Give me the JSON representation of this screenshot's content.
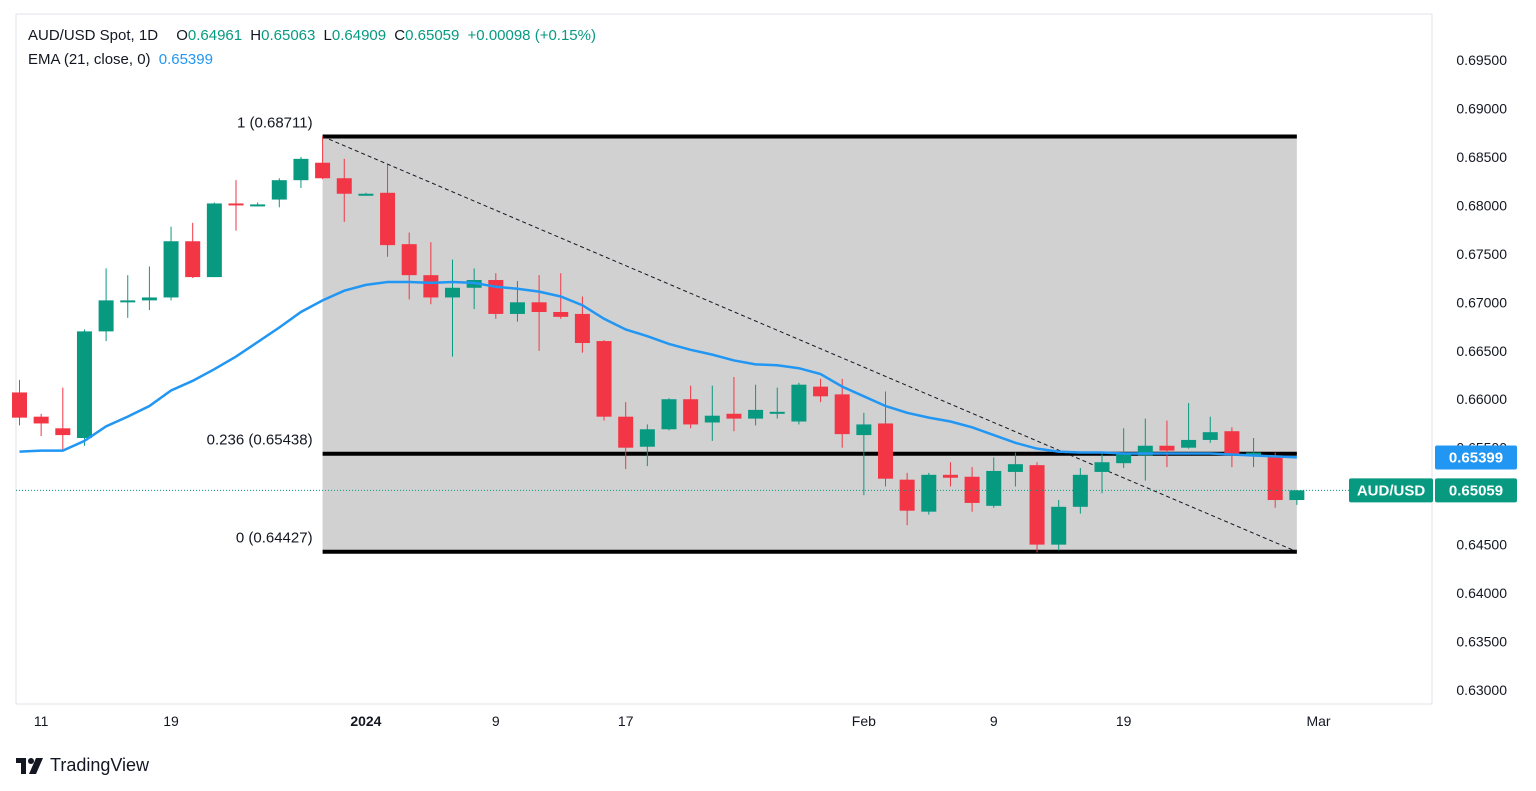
{
  "header": {
    "symbol": "AUD/USD Spot, 1D",
    "o_label": "O",
    "o_value": "0.64961",
    "h_label": "H",
    "h_value": "0.65063",
    "l_label": "L",
    "l_value": "0.64909",
    "c_label": "C",
    "c_value": "0.65059",
    "change": "+0.00098 (+0.15%)",
    "ema_label": "EMA (21, close, 0)",
    "ema_value": "0.65399"
  },
  "branding": {
    "name": "TradingView",
    "icon": "tradingview-logo-icon"
  },
  "colors": {
    "up": "#089981",
    "down": "#f23645",
    "ema": "#2196f3",
    "fib_zone": "#d1d1d1",
    "fib_line": "#000000",
    "grid": "#f0f3fa"
  },
  "chart_data": {
    "type": "candlestick",
    "symbol": "AUD/USD",
    "ylim": [
      0.6275,
      0.6975
    ],
    "yticks": [
      0.695,
      0.69,
      0.685,
      0.68,
      0.675,
      0.67,
      0.665,
      0.66,
      0.655,
      0.65,
      0.645,
      0.64,
      0.635,
      0.63
    ],
    "ytick_labels": [
      "0.69500",
      "0.69000",
      "0.68500",
      "0.68000",
      "0.67500",
      "0.67000",
      "0.66500",
      "0.66000",
      "0.65500",
      "0.65000",
      "0.64500",
      "0.64000",
      "0.63500",
      "0.63000"
    ],
    "xticks": [
      {
        "label": "11",
        "index": 1
      },
      {
        "label": "19",
        "index": 7
      },
      {
        "label": "2024",
        "index": 16,
        "bold": true
      },
      {
        "label": "9",
        "index": 22
      },
      {
        "label": "17",
        "index": 28
      },
      {
        "label": "Feb",
        "index": 39
      },
      {
        "label": "9",
        "index": 45
      },
      {
        "label": "19",
        "index": 51
      },
      {
        "label": "Mar",
        "index": 60
      }
    ],
    "candles": [
      {
        "o": 0.6607,
        "h": 0.662,
        "l": 0.6573,
        "c": 0.6581
      },
      {
        "o": 0.6582,
        "h": 0.6585,
        "l": 0.6562,
        "c": 0.6575
      },
      {
        "o": 0.657,
        "h": 0.6612,
        "l": 0.6546,
        "c": 0.6563
      },
      {
        "o": 0.656,
        "h": 0.6672,
        "l": 0.6552,
        "c": 0.667
      },
      {
        "o": 0.667,
        "h": 0.6735,
        "l": 0.666,
        "c": 0.6702
      },
      {
        "o": 0.6702,
        "h": 0.6728,
        "l": 0.6684,
        "c": 0.6702
      },
      {
        "o": 0.6702,
        "h": 0.6737,
        "l": 0.6692,
        "c": 0.6705
      },
      {
        "o": 0.6705,
        "h": 0.6778,
        "l": 0.6702,
        "c": 0.6763
      },
      {
        "o": 0.6763,
        "h": 0.6782,
        "l": 0.6725,
        "c": 0.6726
      },
      {
        "o": 0.6726,
        "h": 0.6803,
        "l": 0.6726,
        "c": 0.6802
      },
      {
        "o": 0.6802,
        "h": 0.6826,
        "l": 0.6774,
        "c": 0.6801
      },
      {
        "o": 0.68,
        "h": 0.6803,
        "l": 0.6799,
        "c": 0.6801
      },
      {
        "o": 0.6806,
        "h": 0.6828,
        "l": 0.6798,
        "c": 0.6826
      },
      {
        "o": 0.6826,
        "h": 0.685,
        "l": 0.6818,
        "c": 0.6848
      },
      {
        "o": 0.6844,
        "h": 0.6871,
        "l": 0.6827,
        "c": 0.6828
      },
      {
        "o": 0.6828,
        "h": 0.6848,
        "l": 0.6783,
        "c": 0.6812
      },
      {
        "o": 0.6812,
        "h": 0.6813,
        "l": 0.6811,
        "c": 0.6812
      },
      {
        "o": 0.6813,
        "h": 0.6842,
        "l": 0.6747,
        "c": 0.6759
      },
      {
        "o": 0.676,
        "h": 0.6772,
        "l": 0.6703,
        "c": 0.6728
      },
      {
        "o": 0.6728,
        "h": 0.6762,
        "l": 0.6698,
        "c": 0.6705
      },
      {
        "o": 0.6705,
        "h": 0.6744,
        "l": 0.6644,
        "c": 0.6715
      },
      {
        "o": 0.6715,
        "h": 0.6735,
        "l": 0.6693,
        "c": 0.6723
      },
      {
        "o": 0.6723,
        "h": 0.673,
        "l": 0.6683,
        "c": 0.6688
      },
      {
        "o": 0.6688,
        "h": 0.6722,
        "l": 0.668,
        "c": 0.67
      },
      {
        "o": 0.67,
        "h": 0.6728,
        "l": 0.665,
        "c": 0.669
      },
      {
        "o": 0.669,
        "h": 0.673,
        "l": 0.6683,
        "c": 0.6685
      },
      {
        "o": 0.6688,
        "h": 0.6706,
        "l": 0.6648,
        "c": 0.6658
      },
      {
        "o": 0.666,
        "h": 0.6661,
        "l": 0.6578,
        "c": 0.6582
      },
      {
        "o": 0.6582,
        "h": 0.6597,
        "l": 0.6528,
        "c": 0.655
      },
      {
        "o": 0.6551,
        "h": 0.6574,
        "l": 0.6531,
        "c": 0.6569
      },
      {
        "o": 0.6569,
        "h": 0.6601,
        "l": 0.6568,
        "c": 0.66
      },
      {
        "o": 0.66,
        "h": 0.6614,
        "l": 0.657,
        "c": 0.6574
      },
      {
        "o": 0.6576,
        "h": 0.6614,
        "l": 0.6557,
        "c": 0.6583
      },
      {
        "o": 0.6585,
        "h": 0.6623,
        "l": 0.6567,
        "c": 0.658
      },
      {
        "o": 0.658,
        "h": 0.6615,
        "l": 0.6573,
        "c": 0.6589
      },
      {
        "o": 0.6585,
        "h": 0.6612,
        "l": 0.658,
        "c": 0.6587
      },
      {
        "o": 0.6577,
        "h": 0.6617,
        "l": 0.6574,
        "c": 0.6615
      },
      {
        "o": 0.6613,
        "h": 0.6621,
        "l": 0.6597,
        "c": 0.6603
      },
      {
        "o": 0.6605,
        "h": 0.6621,
        "l": 0.655,
        "c": 0.6564
      },
      {
        "o": 0.6563,
        "h": 0.6586,
        "l": 0.6501,
        "c": 0.6574
      },
      {
        "o": 0.6575,
        "h": 0.6608,
        "l": 0.651,
        "c": 0.6518
      },
      {
        "o": 0.6517,
        "h": 0.6524,
        "l": 0.647,
        "c": 0.6485
      },
      {
        "o": 0.6484,
        "h": 0.6524,
        "l": 0.6481,
        "c": 0.6522
      },
      {
        "o": 0.6522,
        "h": 0.6535,
        "l": 0.651,
        "c": 0.6519
      },
      {
        "o": 0.652,
        "h": 0.653,
        "l": 0.6484,
        "c": 0.6493
      },
      {
        "o": 0.649,
        "h": 0.654,
        "l": 0.6488,
        "c": 0.6526
      },
      {
        "o": 0.6525,
        "h": 0.6545,
        "l": 0.651,
        "c": 0.6533
      },
      {
        "o": 0.6532,
        "h": 0.6535,
        "l": 0.6442,
        "c": 0.645
      },
      {
        "o": 0.645,
        "h": 0.6496,
        "l": 0.6444,
        "c": 0.6489
      },
      {
        "o": 0.6489,
        "h": 0.6529,
        "l": 0.6482,
        "c": 0.6522
      },
      {
        "o": 0.6525,
        "h": 0.6545,
        "l": 0.6503,
        "c": 0.6535
      },
      {
        "o": 0.6534,
        "h": 0.657,
        "l": 0.6529,
        "c": 0.6545
      },
      {
        "o": 0.6542,
        "h": 0.658,
        "l": 0.6516,
        "c": 0.6552
      },
      {
        "o": 0.6552,
        "h": 0.6578,
        "l": 0.653,
        "c": 0.6547
      },
      {
        "o": 0.655,
        "h": 0.6596,
        "l": 0.6549,
        "c": 0.6558
      },
      {
        "o": 0.6558,
        "h": 0.6582,
        "l": 0.6555,
        "c": 0.6566
      },
      {
        "o": 0.6567,
        "h": 0.6571,
        "l": 0.653,
        "c": 0.6542
      },
      {
        "o": 0.6542,
        "h": 0.656,
        "l": 0.653,
        "c": 0.6545
      },
      {
        "o": 0.6542,
        "h": 0.6545,
        "l": 0.6488,
        "c": 0.6496
      },
      {
        "o": 0.6496,
        "h": 0.6506,
        "l": 0.6491,
        "c": 0.6506
      }
    ],
    "ema_series": [
      0.6546,
      0.6547,
      0.6547,
      0.6557,
      0.6572,
      0.6582,
      0.6593,
      0.6609,
      0.6619,
      0.6631,
      0.6644,
      0.6659,
      0.6674,
      0.669,
      0.6702,
      0.6712,
      0.6718,
      0.6721,
      0.6721,
      0.672,
      0.6721,
      0.672,
      0.6716,
      0.6714,
      0.6711,
      0.6706,
      0.6697,
      0.6683,
      0.6672,
      0.6665,
      0.6657,
      0.6651,
      0.6646,
      0.664,
      0.6636,
      0.6635,
      0.6632,
      0.6626,
      0.6613,
      0.6603,
      0.6593,
      0.6586,
      0.6581,
      0.6577,
      0.6571,
      0.6563,
      0.6555,
      0.6549,
      0.6546,
      0.6545,
      0.6545,
      0.6544,
      0.6544,
      0.6544,
      0.6544,
      0.6544,
      0.6543,
      0.6542,
      0.6541,
      0.654
    ],
    "fibonacci": {
      "start_index": 14,
      "end_index": 59,
      "levels": [
        {
          "ratio": "1",
          "price": 0.68711,
          "label": "1 (0.68711)"
        },
        {
          "ratio": "0.236",
          "price": 0.65438,
          "label": "0.236 (0.65438)"
        },
        {
          "ratio": "0",
          "price": 0.64427,
          "label": "0 (0.64427)"
        }
      ],
      "trend_line": {
        "from_price": 0.68711,
        "to_price": 0.64427
      }
    },
    "price_labels": [
      {
        "name": "ema",
        "text": "0.65399",
        "value": 0.65399,
        "color": "#2196f3"
      },
      {
        "name": "last",
        "symbol_text": "AUD/USD",
        "text": "0.65059",
        "value": 0.65059,
        "color": "#089981"
      }
    ]
  }
}
